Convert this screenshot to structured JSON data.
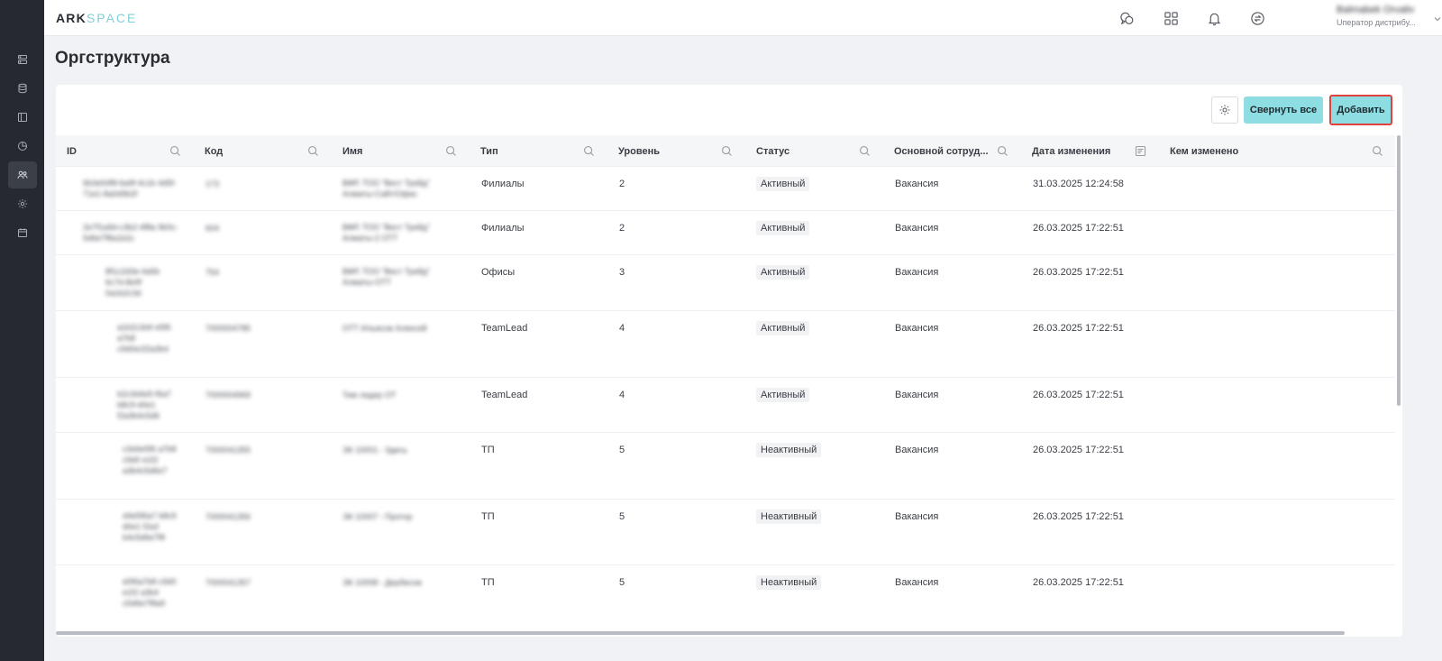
{
  "app": {
    "logo_ark": "ARK",
    "logo_space": "SPACE"
  },
  "sidebar": {
    "items": [
      {
        "icon": "server-icon"
      },
      {
        "icon": "database-icon"
      },
      {
        "icon": "layout-icon"
      },
      {
        "icon": "chart-pie-icon"
      },
      {
        "icon": "users-icon",
        "active": true
      },
      {
        "icon": "gear-icon"
      },
      {
        "icon": "calendar-icon"
      }
    ]
  },
  "header": {
    "icons": [
      "chat-icon",
      "apps-grid-icon",
      "bell-icon",
      "exchange-icon"
    ],
    "user_name": "Balmabek Orvaliv",
    "user_role": "Uператор дистрибу..."
  },
  "page": {
    "title": "Оргструктура"
  },
  "toolbar": {
    "collapse_label": "Свернуть все",
    "add_label": "Добавить"
  },
  "table": {
    "columns": [
      {
        "label": "ID",
        "icon": "search-icon"
      },
      {
        "label": "Код",
        "icon": "search-icon"
      },
      {
        "label": "Имя",
        "icon": "search-icon"
      },
      {
        "label": "Тип",
        "icon": "search-icon"
      },
      {
        "label": "Уровень",
        "icon": "search-icon"
      },
      {
        "label": "Статус",
        "icon": "search-icon"
      },
      {
        "label": "Основной сотруд...",
        "icon": "search-icon"
      },
      {
        "label": "Дата изменения",
        "icon": "filter-list-icon"
      },
      {
        "label": "Кем изменено",
        "icon": "search-icon"
      }
    ],
    "rows": [
      {
        "id": "6b3e54f8-6a9f-4c1b 4d5f-71e1-8a0d9b2f",
        "code": "173",
        "name": "ВФР, ТОО \"Вест Трейд\" Алматы-Сайт/Офис",
        "type": "Филиалы",
        "level": "2",
        "status": "Активный",
        "employee": "Вакансия",
        "date": "31.03.2025 12:24:58"
      },
      {
        "id": "2e7f1a9d-c3b2-4f8a 9b0c-5d6e7f8a1b2c",
        "code": "604",
        "name": "ВФР, ТОО \"Вест Трейд\" Алматы-2 ОТТ",
        "type": "Филиалы",
        "level": "2",
        "status": "Активный",
        "employee": "Вакансия",
        "date": "26.03.2025 17:22:51"
      },
      {
        "id": "8f1c2d3e-4a5b 6c7d-8e9f 0a1b2c3d",
        "code": "754",
        "name": "ВФР, ТОО \"Вест Трейд\" Алматы-ОТТ",
        "type": "Офисы",
        "level": "3",
        "status": "Активный",
        "employee": "Вакансия",
        "date": "26.03.2025 17:22:51"
      },
      {
        "id": "a1b2c3d4 e5f6 a7b8 c9d0e1f2a3b4",
        "code": "7000004785",
        "name": "ОТТ Ильясов Алексей",
        "type": "TeamLead",
        "level": "4",
        "status": "Активный",
        "employee": "Вакансия",
        "date": "26.03.2025 17:22:51"
      },
      {
        "id": "b2c3d4e5-f6a7 b8c9-d0e1 f2a3b4c5d6",
        "code": "7000004969",
        "name": "Тим лидер ОТ",
        "type": "TeamLead",
        "level": "4",
        "status": "Активный",
        "employee": "Вакансия",
        "date": "26.03.2025 17:22:51"
      },
      {
        "id": "c3d4e5f6 a7b8 c9d0 e1f2 a3b4c5d6e7",
        "code": "7000041355",
        "name": "ЭК 10001 - Здесь",
        "type": "ТП",
        "level": "5",
        "status": "Неактивный",
        "employee": "Вакансия",
        "date": "26.03.2025 17:22:51"
      },
      {
        "id": "d4e5f6a7 b8c9 d0e1 f2a3 b4c5d6e7f8",
        "code": "7000041356",
        "name": "ЭК 10007 - Протор",
        "type": "ТП",
        "level": "5",
        "status": "Неактивный",
        "employee": "Вакансия",
        "date": "26.03.2025 17:22:51"
      },
      {
        "id": "e5f6a7b8 c9d0 e1f2 a3b4 c5d6e7f8a9",
        "code": "7000041357",
        "name": "ЭК 10008 - Дербесов",
        "type": "ТП",
        "level": "5",
        "status": "Неактивный",
        "employee": "Вакансия",
        "date": "26.03.2025 17:22:51"
      }
    ]
  }
}
